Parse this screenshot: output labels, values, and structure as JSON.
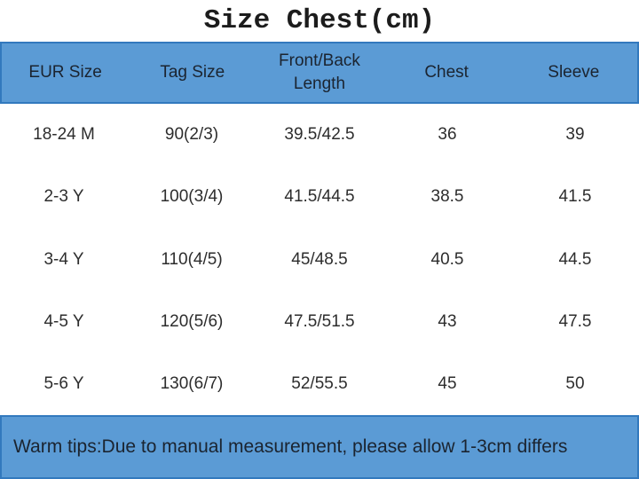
{
  "title": "Size Chest(cm)",
  "table": {
    "headers": [
      "EUR Size",
      "Tag Size",
      "Front/Back Length",
      "Chest",
      "Sleeve"
    ],
    "rows": [
      [
        "18-24 M",
        "90(2/3)",
        "39.5/42.5",
        "36",
        "39"
      ],
      [
        "2-3 Y",
        "100(3/4)",
        "41.5/44.5",
        "38.5",
        "41.5"
      ],
      [
        "3-4 Y",
        "110(4/5)",
        "45/48.5",
        "40.5",
        "44.5"
      ],
      [
        "4-5 Y",
        "120(5/6)",
        "47.5/51.5",
        "43",
        "47.5"
      ],
      [
        "5-6 Y",
        "130(6/7)",
        "52/55.5",
        "45",
        "50"
      ]
    ]
  },
  "footer": {
    "text": "Warm tips:Due to manual measurement, please allow 1-3cm differs"
  },
  "colors": {
    "header_bg": "#5b9bd5",
    "header_border": "#3279be",
    "header_text": "#1b2430",
    "body_text": "#2d2d2d",
    "footer_bg": "#5b9bd5",
    "title_text": "#1c1c1c"
  },
  "chart_data": {
    "type": "table",
    "title": "Size Chest(cm)",
    "columns": [
      "EUR Size",
      "Tag Size",
      "Front/Back Length",
      "Chest",
      "Sleeve"
    ],
    "rows": [
      {
        "eur_size": "18-24 M",
        "tag_size": "90(2/3)",
        "front_back_length": "39.5/42.5",
        "chest": 36,
        "sleeve": 39
      },
      {
        "eur_size": "2-3 Y",
        "tag_size": "100(3/4)",
        "front_back_length": "41.5/44.5",
        "chest": 38.5,
        "sleeve": 41.5
      },
      {
        "eur_size": "3-4 Y",
        "tag_size": "110(4/5)",
        "front_back_length": "45/48.5",
        "chest": 40.5,
        "sleeve": 44.5
      },
      {
        "eur_size": "4-5 Y",
        "tag_size": "120(5/6)",
        "front_back_length": "47.5/51.5",
        "chest": 43,
        "sleeve": 47.5
      },
      {
        "eur_size": "5-6 Y",
        "tag_size": "130(6/7)",
        "front_back_length": "52/55.5",
        "chest": 45,
        "sleeve": 50
      }
    ],
    "note": "Warm tips:Due to manual measurement, please allow 1-3cm differs",
    "units": "cm"
  }
}
